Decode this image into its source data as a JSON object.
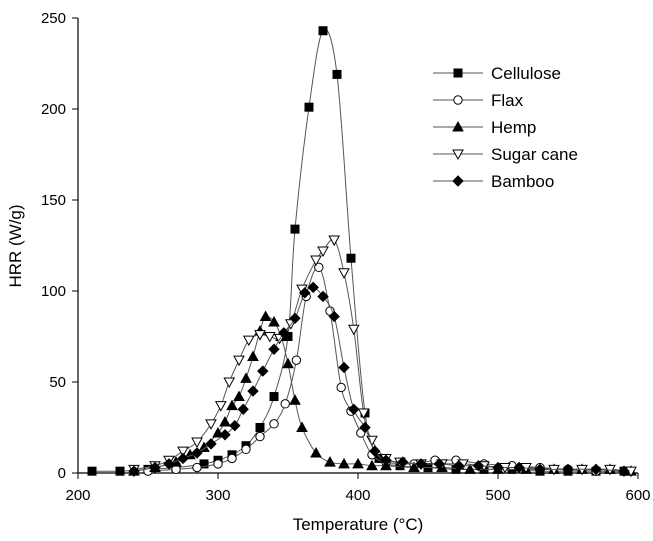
{
  "chart_data": {
    "type": "line",
    "title": "",
    "xlabel": "Temperature (°C)",
    "ylabel": "HRR (W/g)",
    "xlim": [
      200,
      600
    ],
    "ylim": [
      0,
      250
    ],
    "xticks": [
      200,
      300,
      400,
      500,
      600
    ],
    "yticks": [
      0,
      50,
      100,
      150,
      200,
      250
    ],
    "x_tick_labels": [
      "200",
      "300",
      "400",
      "500",
      "600"
    ],
    "y_tick_labels": [
      "0",
      "50",
      "100",
      "150",
      "200",
      "250"
    ],
    "grid": false,
    "legend_position": "top-right",
    "line_color": "#555555",
    "marker_color": "#000000",
    "series": [
      {
        "name": "Cellulose",
        "marker": "square-filled",
        "points": [
          [
            210,
            1
          ],
          [
            230,
            1
          ],
          [
            250,
            2
          ],
          [
            270,
            3
          ],
          [
            290,
            5
          ],
          [
            300,
            7
          ],
          [
            310,
            10
          ],
          [
            320,
            15
          ],
          [
            330,
            25
          ],
          [
            340,
            42
          ],
          [
            350,
            75
          ],
          [
            355,
            134
          ],
          [
            365,
            201
          ],
          [
            375,
            243
          ],
          [
            385,
            219
          ],
          [
            395,
            118
          ],
          [
            405,
            33
          ],
          [
            415,
            8
          ],
          [
            430,
            4
          ],
          [
            450,
            3
          ],
          [
            470,
            2
          ],
          [
            490,
            2
          ],
          [
            510,
            2
          ],
          [
            530,
            1
          ],
          [
            550,
            1
          ],
          [
            570,
            1
          ],
          [
            590,
            1
          ]
        ]
      },
      {
        "name": "Flax",
        "marker": "circle-open",
        "points": [
          [
            250,
            1
          ],
          [
            270,
            2
          ],
          [
            285,
            3
          ],
          [
            300,
            5
          ],
          [
            310,
            8
          ],
          [
            320,
            13
          ],
          [
            330,
            20
          ],
          [
            340,
            27
          ],
          [
            348,
            38
          ],
          [
            356,
            62
          ],
          [
            363,
            97
          ],
          [
            372,
            113
          ],
          [
            380,
            89
          ],
          [
            388,
            47
          ],
          [
            395,
            34
          ],
          [
            402,
            22
          ],
          [
            410,
            10
          ],
          [
            420,
            6
          ],
          [
            440,
            5
          ],
          [
            455,
            7
          ],
          [
            470,
            7
          ],
          [
            490,
            5
          ],
          [
            510,
            4
          ],
          [
            530,
            3
          ],
          [
            550,
            2
          ],
          [
            570,
            1
          ],
          [
            590,
            1
          ]
        ]
      },
      {
        "name": "Hemp",
        "marker": "triangle-up-filled",
        "points": [
          [
            240,
            1
          ],
          [
            255,
            3
          ],
          [
            270,
            6
          ],
          [
            280,
            10
          ],
          [
            290,
            14
          ],
          [
            300,
            22
          ],
          [
            305,
            28
          ],
          [
            310,
            37
          ],
          [
            315,
            42
          ],
          [
            320,
            52
          ],
          [
            325,
            64
          ],
          [
            330,
            78
          ],
          [
            334,
            86
          ],
          [
            340,
            83
          ],
          [
            345,
            75
          ],
          [
            350,
            60
          ],
          [
            355,
            40
          ],
          [
            360,
            25
          ],
          [
            370,
            11
          ],
          [
            380,
            6
          ],
          [
            390,
            5
          ],
          [
            400,
            5
          ],
          [
            410,
            4
          ],
          [
            420,
            4
          ],
          [
            440,
            3
          ],
          [
            460,
            3
          ],
          [
            480,
            2
          ],
          [
            500,
            2
          ],
          [
            520,
            2
          ],
          [
            540,
            2
          ],
          [
            560,
            2
          ],
          [
            580,
            2
          ],
          [
            595,
            1
          ]
        ]
      },
      {
        "name": "Sugar cane",
        "marker": "triangle-down-open",
        "points": [
          [
            240,
            2
          ],
          [
            255,
            4
          ],
          [
            265,
            7
          ],
          [
            275,
            12
          ],
          [
            285,
            17
          ],
          [
            295,
            27
          ],
          [
            302,
            37
          ],
          [
            308,
            50
          ],
          [
            315,
            62
          ],
          [
            322,
            73
          ],
          [
            330,
            76
          ],
          [
            337,
            75
          ],
          [
            344,
            74
          ],
          [
            352,
            82
          ],
          [
            360,
            101
          ],
          [
            370,
            117
          ],
          [
            375,
            122
          ],
          [
            383,
            128
          ],
          [
            390,
            110
          ],
          [
            397,
            79
          ],
          [
            404,
            33
          ],
          [
            410,
            18
          ],
          [
            420,
            8
          ],
          [
            430,
            6
          ],
          [
            445,
            5
          ],
          [
            460,
            5
          ],
          [
            475,
            5
          ],
          [
            490,
            4
          ],
          [
            505,
            3
          ],
          [
            520,
            3
          ],
          [
            540,
            2
          ],
          [
            560,
            2
          ],
          [
            580,
            2
          ],
          [
            595,
            1
          ]
        ]
      },
      {
        "name": "Bamboo",
        "marker": "diamond-filled",
        "points": [
          [
            240,
            1
          ],
          [
            255,
            3
          ],
          [
            265,
            5
          ],
          [
            275,
            8
          ],
          [
            285,
            11
          ],
          [
            295,
            16
          ],
          [
            305,
            21
          ],
          [
            312,
            26
          ],
          [
            318,
            35
          ],
          [
            325,
            45
          ],
          [
            332,
            56
          ],
          [
            340,
            68
          ],
          [
            347,
            77
          ],
          [
            355,
            85
          ],
          [
            362,
            99
          ],
          [
            368,
            102
          ],
          [
            375,
            97
          ],
          [
            383,
            86
          ],
          [
            390,
            58
          ],
          [
            397,
            35
          ],
          [
            405,
            25
          ],
          [
            412,
            12
          ],
          [
            420,
            7
          ],
          [
            432,
            6
          ],
          [
            445,
            5
          ],
          [
            458,
            5
          ],
          [
            472,
            4
          ],
          [
            486,
            4
          ],
          [
            500,
            3
          ],
          [
            515,
            3
          ],
          [
            530,
            2
          ],
          [
            550,
            2
          ],
          [
            570,
            2
          ],
          [
            590,
            1
          ]
        ]
      }
    ]
  }
}
